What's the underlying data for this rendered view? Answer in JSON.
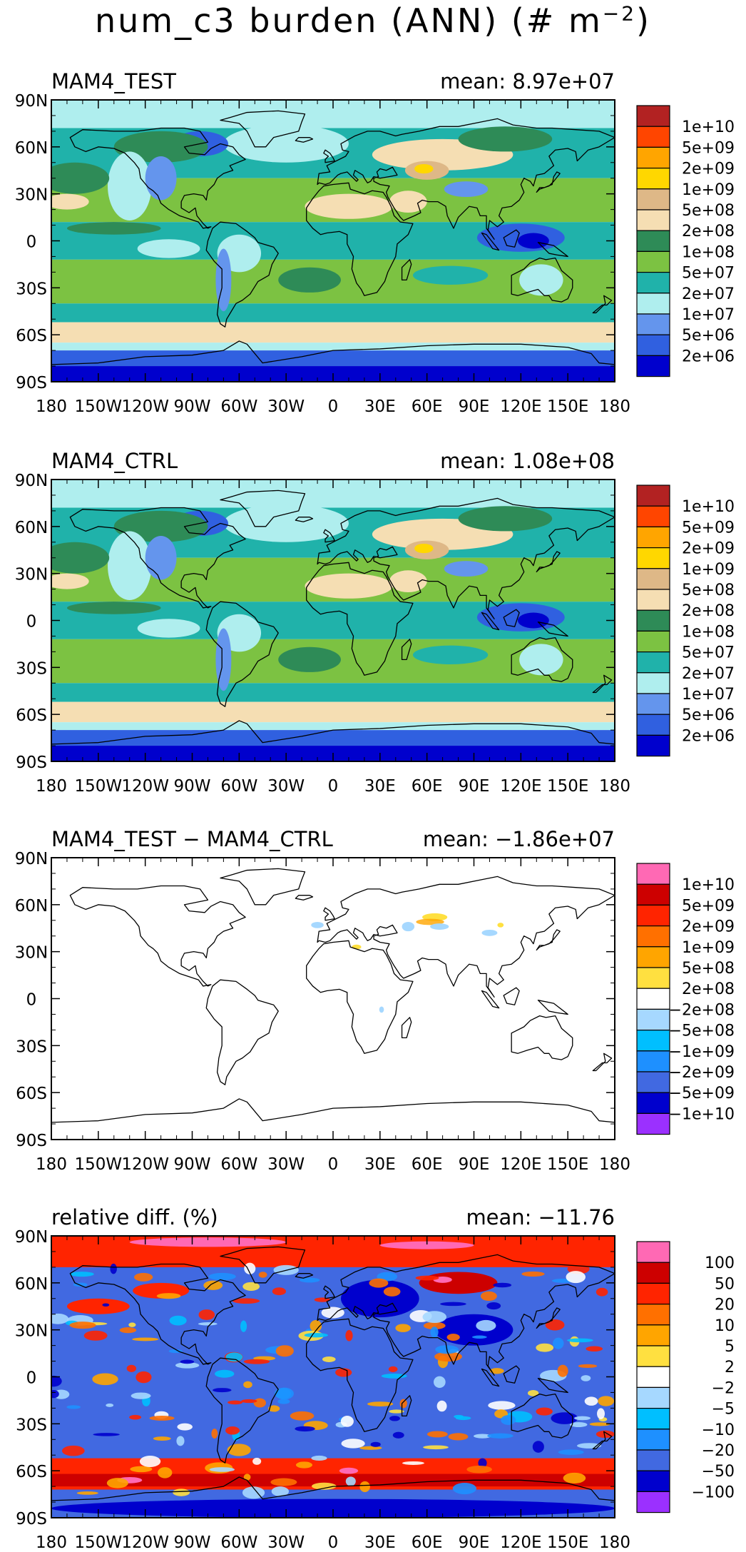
{
  "title": "num_c3 burden (ANN) (# m",
  "title_exponent": "−2",
  "title_close": ")",
  "lon_ticks": [
    "180",
    "150W",
    "120W",
    "90W",
    "60W",
    "30W",
    "0",
    "30E",
    "60E",
    "90E",
    "120E",
    "150E",
    "180"
  ],
  "lat_ticks": [
    "90N",
    "60N",
    "30N",
    "0",
    "30S",
    "60S",
    "90S"
  ],
  "panels": [
    {
      "name": "MAM4_TEST",
      "mean_label": "mean: 8.97e+07",
      "colorbar": {
        "colors": [
          "#b22222",
          "#ff4500",
          "#ffa500",
          "#ffd700",
          "#deb887",
          "#f5deb3",
          "#2e8b57",
          "#7cc242",
          "#20b2aa",
          "#afeeee",
          "#6495ed",
          "#3060e0",
          "#0000cd"
        ],
        "labels": [
          "1e+10",
          "5e+09",
          "2e+09",
          "1e+09",
          "5e+08",
          "2e+08",
          "1e+08",
          "5e+07",
          "2e+07",
          "1e+07",
          "5e+06",
          "2e+06"
        ]
      }
    },
    {
      "name": "MAM4_CTRL",
      "mean_label": "mean: 1.08e+08",
      "colorbar": {
        "colors": [
          "#b22222",
          "#ff4500",
          "#ffa500",
          "#ffd700",
          "#deb887",
          "#f5deb3",
          "#2e8b57",
          "#7cc242",
          "#20b2aa",
          "#afeeee",
          "#6495ed",
          "#3060e0",
          "#0000cd"
        ],
        "labels": [
          "1e+10",
          "5e+09",
          "2e+09",
          "1e+09",
          "5e+08",
          "2e+08",
          "1e+08",
          "5e+07",
          "2e+07",
          "1e+07",
          "5e+06",
          "2e+06"
        ]
      }
    },
    {
      "name": "MAM4_TEST − MAM4_CTRL",
      "mean_label": "mean: −1.86e+07",
      "colorbar": {
        "colors": [
          "#ff69b4",
          "#cd0000",
          "#ff2400",
          "#ff7000",
          "#ffa500",
          "#ffe040",
          "#ffffff",
          "#a6d8ff",
          "#00bfff",
          "#1e90ff",
          "#4169e1",
          "#0000cd",
          "#9b30ff"
        ],
        "labels": [
          "1e+10",
          "5e+09",
          "2e+09",
          "1e+09",
          "5e+08",
          "2e+08",
          "−2e+08",
          "−5e+08",
          "−1e+09",
          "−2e+09",
          "−5e+09",
          "−1e+10"
        ]
      }
    },
    {
      "name": "relative diff. (%)",
      "mean_label": "mean: −11.76",
      "colorbar": {
        "colors": [
          "#ff69b4",
          "#cd0000",
          "#ff2400",
          "#ff7000",
          "#ffa500",
          "#ffe040",
          "#ffffff",
          "#a6d8ff",
          "#00bfff",
          "#1e90ff",
          "#4169e1",
          "#0000cd",
          "#9b30ff"
        ],
        "labels": [
          "100",
          "50",
          "20",
          "10",
          "5",
          "2",
          "−2",
          "−5",
          "−10",
          "−20",
          "−50",
          "−100"
        ]
      }
    }
  ]
}
